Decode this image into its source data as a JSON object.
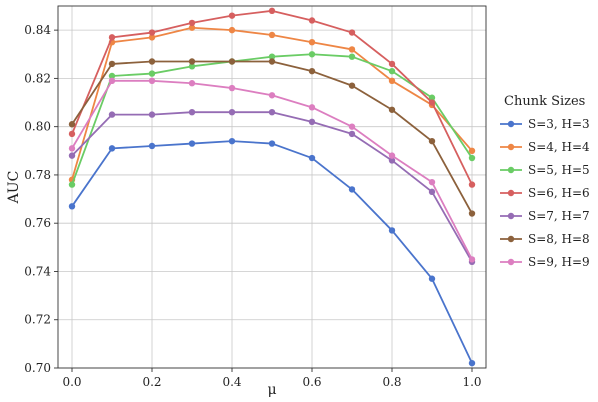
{
  "chart_data": {
    "type": "line",
    "title": "",
    "xlabel": "μ",
    "ylabel": "AUC",
    "xlim": [
      -0.035,
      1.035
    ],
    "ylim": [
      0.7,
      0.85
    ],
    "x_ticks": [
      0.0,
      0.2,
      0.4,
      0.6,
      0.8,
      1.0
    ],
    "x_tick_labels": [
      "0.0",
      "0.2",
      "0.4",
      "0.6",
      "0.8",
      "1.0"
    ],
    "y_ticks": [
      0.7,
      0.72,
      0.74,
      0.76,
      0.78,
      0.8,
      0.82,
      0.84
    ],
    "y_tick_labels": [
      "0.70",
      "0.72",
      "0.74",
      "0.76",
      "0.78",
      "0.80",
      "0.82",
      "0.84"
    ],
    "grid": true,
    "legend": {
      "title": "Chunk Sizes",
      "placement": "outside-right"
    },
    "x": [
      0.0,
      0.1,
      0.2,
      0.3,
      0.4,
      0.5,
      0.6,
      0.7,
      0.8,
      0.9,
      1.0
    ],
    "series": [
      {
        "name": "S=3, H=3",
        "color": "#4a74cc",
        "values": [
          0.767,
          0.791,
          0.792,
          0.793,
          0.794,
          0.793,
          0.787,
          0.774,
          0.757,
          0.737,
          0.702
        ]
      },
      {
        "name": "S=4, H=4",
        "color": "#ee8645",
        "values": [
          0.778,
          0.835,
          0.837,
          0.841,
          0.84,
          0.838,
          0.835,
          0.832,
          0.819,
          0.809,
          0.79
        ]
      },
      {
        "name": "S=5, H=5",
        "color": "#6acc65",
        "values": [
          0.776,
          0.821,
          0.822,
          0.825,
          0.827,
          0.829,
          0.83,
          0.829,
          0.823,
          0.812,
          0.787
        ]
      },
      {
        "name": "S=6, H=6",
        "color": "#d65f5f",
        "values": [
          0.797,
          0.837,
          0.839,
          0.843,
          0.846,
          0.848,
          0.844,
          0.839,
          0.826,
          0.81,
          0.776
        ]
      },
      {
        "name": "S=7, H=7",
        "color": "#956cb4",
        "values": [
          0.788,
          0.805,
          0.805,
          0.806,
          0.806,
          0.806,
          0.802,
          0.797,
          0.786,
          0.773,
          0.744
        ]
      },
      {
        "name": "S=8, H=8",
        "color": "#8c613c",
        "values": [
          0.801,
          0.826,
          0.827,
          0.827,
          0.827,
          0.827,
          0.823,
          0.817,
          0.807,
          0.794,
          0.764
        ]
      },
      {
        "name": "S=9, H=9",
        "color": "#dc7ec0",
        "values": [
          0.791,
          0.819,
          0.819,
          0.818,
          0.816,
          0.813,
          0.808,
          0.8,
          0.788,
          0.777,
          0.745
        ]
      }
    ]
  }
}
